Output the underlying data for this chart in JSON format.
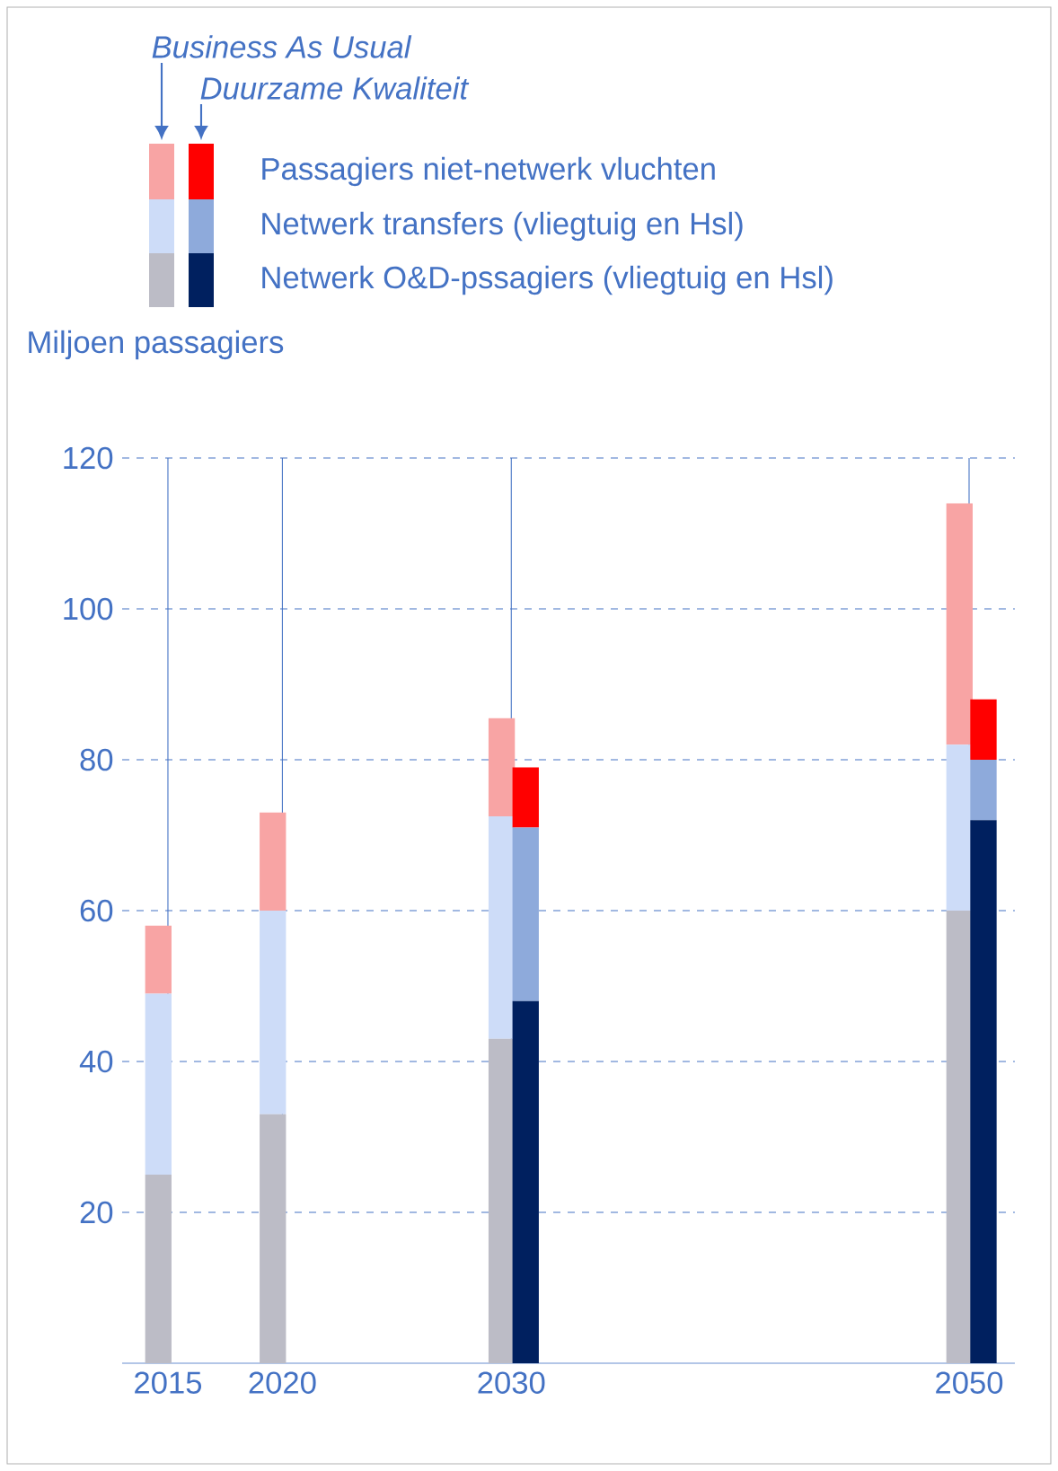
{
  "chart_data": [
    {
      "type": "bar",
      "stacked": true,
      "ylabel": "Miljoen passagiers",
      "xlim": [
        2013,
        2052
      ],
      "ylim": [
        0,
        120
      ],
      "xticks": [
        2015,
        2020,
        2030,
        2050
      ],
      "yticks": [
        20,
        40,
        60,
        80,
        100,
        120
      ],
      "grid": true,
      "annotations": [
        "Business As Usual"
      ],
      "series": [
        {
          "color": "#bcbcc6",
          "x": [
            2015,
            2020,
            2030,
            2050
          ],
          "values": [
            25,
            33,
            43,
            60
          ]
        },
        {
          "color": "#cddcf8",
          "x": [
            2015,
            2020,
            2030,
            2050
          ],
          "values": [
            24,
            27,
            29.5,
            22
          ]
        },
        {
          "color": "#f8a4a4",
          "x": [
            2015,
            2020,
            2030,
            2050
          ],
          "values": [
            9,
            13,
            13,
            32
          ]
        }
      ]
    },
    {
      "type": "bar",
      "stacked": true,
      "xlim": [
        2013,
        2052
      ],
      "ylim": [
        0,
        120
      ],
      "xticks": [
        2015,
        2020,
        2030,
        2050
      ],
      "yticks": [
        20,
        40,
        60,
        80,
        100,
        120
      ],
      "tick_labels": false,
      "legend": "top left",
      "legend_title": "Duurzame Kwaliteit",
      "series": [
        {
          "name": "Netwerk O&D-pssagiers (vliegtuig en Hsl)",
          "color": "#00205f",
          "x": [
            2030,
            2050
          ],
          "values": [
            48,
            72
          ]
        },
        {
          "name": "Netwerk transfers (vliegtuig en Hsl)",
          "color": "#8eaadb",
          "x": [
            2030,
            2050
          ],
          "values": [
            23,
            8
          ]
        },
        {
          "name": "Passagiers niet-netwerk vluchten",
          "color": "#ff0000",
          "x": [
            2030,
            2050
          ],
          "values": [
            8,
            8
          ]
        }
      ]
    }
  ]
}
